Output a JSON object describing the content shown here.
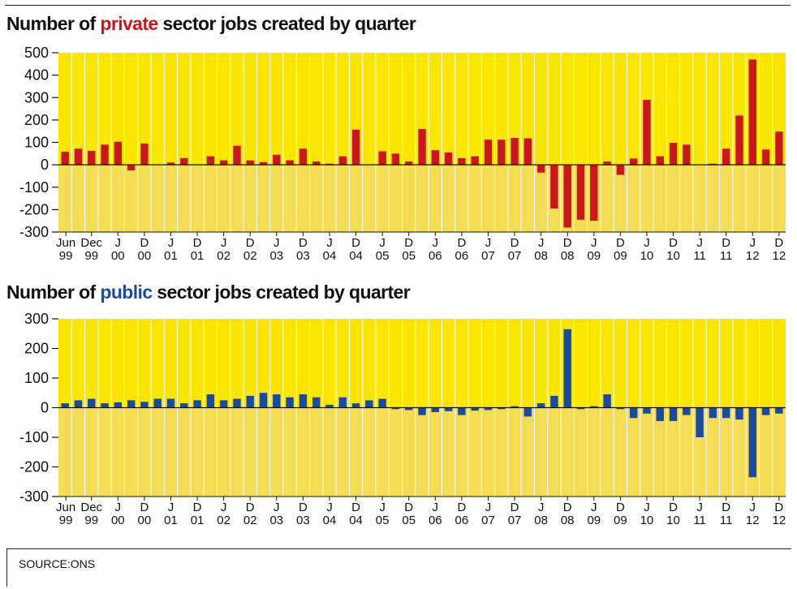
{
  "charts": {
    "private": {
      "title_prefix": "Number of ",
      "title_highlight": "private",
      "title_suffix": " sector jobs created by quarter"
    },
    "public": {
      "title_prefix": "Number of ",
      "title_highlight": "public",
      "title_suffix": " sector jobs created by quarter"
    }
  },
  "source": "SOURCE:ONS",
  "colors": {
    "bg_positive": "#fae600",
    "bg_negative": "#f4dd54",
    "private_bar": "#c8171d",
    "public_bar": "#1b4b9b",
    "grid": "#ffffff",
    "axis": "#111111"
  },
  "chart_data": [
    {
      "type": "bar",
      "title": "Number of private sector jobs created by quarter",
      "ylim": [
        -300,
        500
      ],
      "yticks": [
        500,
        400,
        300,
        200,
        100,
        0,
        -100,
        -200,
        -300
      ],
      "x_tick_labels": [
        {
          "top": "Jun",
          "bottom": "99"
        },
        {
          "top": "Dec",
          "bottom": "99"
        },
        {
          "top": "J",
          "bottom": "00"
        },
        {
          "top": "D",
          "bottom": "00"
        },
        {
          "top": "J",
          "bottom": "01"
        },
        {
          "top": "D",
          "bottom": "01"
        },
        {
          "top": "J",
          "bottom": "02"
        },
        {
          "top": "D",
          "bottom": "02"
        },
        {
          "top": "J",
          "bottom": "03"
        },
        {
          "top": "D",
          "bottom": "03"
        },
        {
          "top": "J",
          "bottom": "04"
        },
        {
          "top": "D",
          "bottom": "04"
        },
        {
          "top": "J",
          "bottom": "05"
        },
        {
          "top": "D",
          "bottom": "05"
        },
        {
          "top": "J",
          "bottom": "06"
        },
        {
          "top": "D",
          "bottom": "06"
        },
        {
          "top": "J",
          "bottom": "07"
        },
        {
          "top": "D",
          "bottom": "07"
        },
        {
          "top": "J",
          "bottom": "08"
        },
        {
          "top": "D",
          "bottom": "08"
        },
        {
          "top": "J",
          "bottom": "09"
        },
        {
          "top": "D",
          "bottom": "09"
        },
        {
          "top": "J",
          "bottom": "10"
        },
        {
          "top": "D",
          "bottom": "10"
        },
        {
          "top": "J",
          "bottom": "11"
        },
        {
          "top": "D",
          "bottom": "11"
        },
        {
          "top": "J",
          "bottom": "12"
        },
        {
          "top": "D",
          "bottom": "12"
        }
      ],
      "values": [
        58,
        72,
        62,
        90,
        103,
        -25,
        95,
        0,
        10,
        30,
        0,
        38,
        20,
        85,
        20,
        12,
        45,
        20,
        72,
        15,
        5,
        38,
        157,
        0,
        60,
        50,
        15,
        160,
        65,
        55,
        30,
        38,
        112,
        112,
        120,
        118,
        -35,
        -195,
        -280,
        -245,
        -250,
        15,
        -45,
        28,
        290,
        38,
        98,
        90,
        0,
        5,
        72,
        220,
        470,
        68,
        148
      ]
    },
    {
      "type": "bar",
      "title": "Number of public sector jobs created by quarter",
      "ylim": [
        -300,
        300
      ],
      "yticks": [
        300,
        200,
        100,
        0,
        -100,
        -200,
        -300
      ],
      "x_tick_labels": [
        {
          "top": "Jun",
          "bottom": "99"
        },
        {
          "top": "Dec",
          "bottom": "99"
        },
        {
          "top": "J",
          "bottom": "00"
        },
        {
          "top": "D",
          "bottom": "00"
        },
        {
          "top": "J",
          "bottom": "01"
        },
        {
          "top": "D",
          "bottom": "01"
        },
        {
          "top": "J",
          "bottom": "02"
        },
        {
          "top": "D",
          "bottom": "02"
        },
        {
          "top": "J",
          "bottom": "03"
        },
        {
          "top": "D",
          "bottom": "03"
        },
        {
          "top": "J",
          "bottom": "04"
        },
        {
          "top": "D",
          "bottom": "04"
        },
        {
          "top": "J",
          "bottom": "05"
        },
        {
          "top": "D",
          "bottom": "05"
        },
        {
          "top": "J",
          "bottom": "06"
        },
        {
          "top": "D",
          "bottom": "06"
        },
        {
          "top": "J",
          "bottom": "07"
        },
        {
          "top": "D",
          "bottom": "07"
        },
        {
          "top": "J",
          "bottom": "08"
        },
        {
          "top": "D",
          "bottom": "08"
        },
        {
          "top": "J",
          "bottom": "09"
        },
        {
          "top": "D",
          "bottom": "09"
        },
        {
          "top": "J",
          "bottom": "10"
        },
        {
          "top": "D",
          "bottom": "10"
        },
        {
          "top": "J",
          "bottom": "11"
        },
        {
          "top": "D",
          "bottom": "11"
        },
        {
          "top": "J",
          "bottom": "12"
        },
        {
          "top": "D",
          "bottom": "12"
        }
      ],
      "values": [
        15,
        25,
        30,
        15,
        18,
        25,
        20,
        30,
        30,
        15,
        25,
        45,
        25,
        30,
        40,
        50,
        45,
        35,
        45,
        35,
        10,
        35,
        15,
        25,
        30,
        -5,
        -8,
        -25,
        -15,
        -12,
        -25,
        -10,
        -8,
        -5,
        5,
        -30,
        15,
        40,
        265,
        -5,
        5,
        45,
        -5,
        -35,
        -20,
        -45,
        -45,
        -25,
        -100,
        -35,
        -35,
        -40,
        -235,
        -25,
        -20
      ]
    }
  ]
}
